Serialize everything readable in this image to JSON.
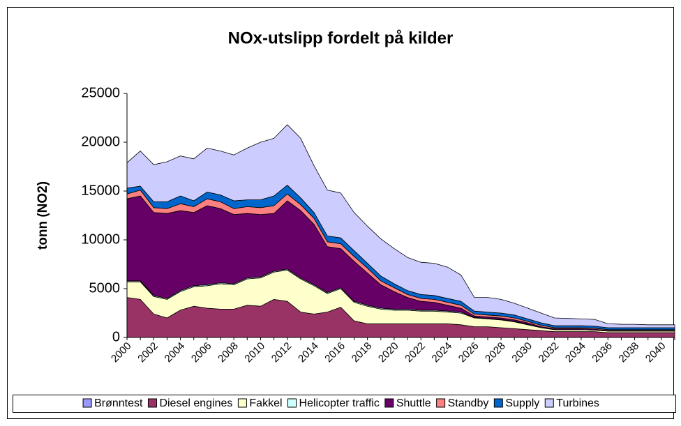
{
  "chart_data": {
    "type": "stacked_area",
    "title": "NOx-utslipp fordelt på kilder",
    "y_label": "tonn (NO2)",
    "categories": [
      "2000",
      "2001",
      "2002",
      "2003",
      "2004",
      "2005",
      "2006",
      "2007",
      "2008",
      "2009",
      "2010",
      "2011",
      "2012",
      "2013",
      "2014",
      "2015",
      "2016",
      "2017",
      "2018",
      "2019",
      "2020",
      "2021",
      "2022",
      "2023",
      "2024",
      "2025",
      "2026",
      "2027",
      "2028",
      "2029",
      "2030",
      "2031",
      "2032",
      "2033",
      "2034",
      "2035",
      "2036",
      "2037",
      "2038",
      "2039",
      "2040",
      "2041"
    ],
    "x_tick_labels": [
      0,
      2,
      4,
      6,
      8,
      10,
      12,
      14,
      16,
      18,
      20,
      22,
      24,
      26,
      28,
      30,
      32,
      34,
      36,
      38,
      40
    ],
    "ylim": [
      0,
      25000
    ],
    "yticks": [
      0,
      5000,
      10000,
      15000,
      20000,
      25000
    ],
    "legend": "bottom",
    "series": [
      {
        "name": "Brønntest",
        "color": "#9999ff",
        "values": [
          0,
          0,
          0,
          0,
          0,
          0,
          0,
          0,
          0,
          0,
          0,
          0,
          0,
          0,
          0,
          0,
          0,
          0,
          0,
          0,
          0,
          0,
          0,
          0,
          0,
          0,
          0,
          0,
          0,
          0,
          0,
          0,
          0,
          0,
          0,
          0,
          0,
          0,
          0,
          0,
          0,
          0
        ]
      },
      {
        "name": "Diesel engines",
        "color": "#993366",
        "values": [
          4100,
          3900,
          2400,
          2000,
          2800,
          3200,
          3000,
          2900,
          2900,
          3300,
          3200,
          3900,
          3700,
          2600,
          2400,
          2600,
          3100,
          1700,
          1400,
          1400,
          1400,
          1400,
          1400,
          1400,
          1400,
          1300,
          1100,
          1100,
          1000,
          900,
          800,
          700,
          600,
          600,
          600,
          600,
          500,
          500,
          500,
          500,
          500,
          500
        ]
      },
      {
        "name": "Fakkel",
        "color": "#ffffcc",
        "values": [
          1600,
          1800,
          1800,
          1900,
          1900,
          2000,
          2300,
          2600,
          2500,
          2700,
          2900,
          2800,
          3200,
          3400,
          2900,
          1900,
          1900,
          1900,
          1800,
          1500,
          1400,
          1400,
          1300,
          1300,
          1200,
          1200,
          900,
          800,
          800,
          700,
          500,
          300,
          200,
          200,
          200,
          150,
          150,
          150,
          150,
          150,
          150,
          150
        ]
      },
      {
        "name": "Helicopter traffic",
        "color": "#ccffff",
        "values": [
          100,
          100,
          100,
          100,
          100,
          100,
          100,
          100,
          100,
          100,
          100,
          100,
          100,
          100,
          100,
          100,
          100,
          100,
          100,
          100,
          100,
          100,
          100,
          100,
          100,
          100,
          50,
          50,
          50,
          50,
          50,
          0,
          0,
          0,
          0,
          0,
          0,
          0,
          0,
          0,
          0,
          0
        ]
      },
      {
        "name": "Shuttle",
        "color": "#660066",
        "values": [
          8400,
          8700,
          8500,
          8700,
          8200,
          7500,
          8100,
          7600,
          7100,
          6600,
          6400,
          5900,
          7000,
          6900,
          6200,
          4700,
          4000,
          4100,
          3300,
          2400,
          1800,
          1200,
          900,
          800,
          600,
          400,
          150,
          150,
          150,
          150,
          150,
          100,
          100,
          100,
          100,
          100,
          50,
          50,
          50,
          50,
          50,
          50
        ]
      },
      {
        "name": "Standby",
        "color": "#ff8080",
        "values": [
          500,
          600,
          500,
          500,
          700,
          600,
          700,
          700,
          600,
          700,
          700,
          800,
          700,
          600,
          600,
          500,
          500,
          500,
          500,
          400,
          400,
          300,
          300,
          300,
          300,
          300,
          200,
          200,
          200,
          200,
          150,
          150,
          100,
          100,
          100,
          100,
          100,
          100,
          100,
          100,
          100,
          100
        ]
      },
      {
        "name": "Supply",
        "color": "#0066cc",
        "values": [
          600,
          400,
          600,
          700,
          800,
          600,
          700,
          700,
          800,
          700,
          800,
          1000,
          900,
          700,
          600,
          600,
          600,
          600,
          500,
          500,
          400,
          400,
          400,
          400,
          400,
          400,
          300,
          300,
          300,
          300,
          250,
          250,
          200,
          200,
          200,
          200,
          200,
          200,
          200,
          200,
          200,
          200
        ]
      },
      {
        "name": "Turbines",
        "color": "#ccccff",
        "values": [
          2600,
          3600,
          3800,
          4100,
          4100,
          4300,
          4500,
          4500,
          4700,
          5300,
          5900,
          5900,
          6200,
          6100,
          4800,
          4700,
          4600,
          3900,
          3800,
          3800,
          3600,
          3400,
          3300,
          3300,
          3200,
          2700,
          1400,
          1500,
          1400,
          1200,
          1100,
          1000,
          800,
          750,
          700,
          700,
          400,
          350,
          350,
          300,
          300,
          300
        ]
      }
    ]
  }
}
